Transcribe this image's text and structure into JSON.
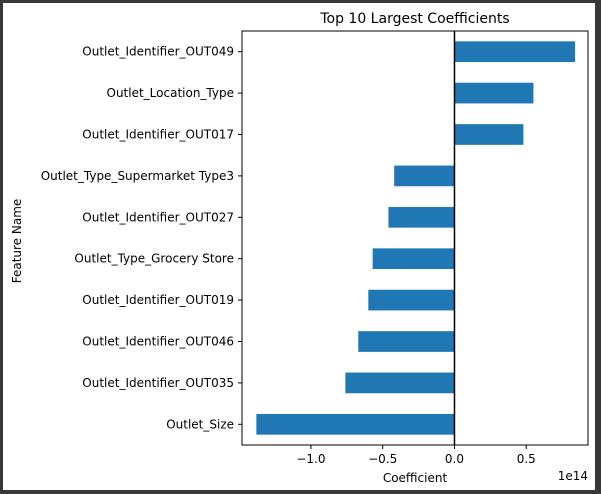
{
  "chart_data": {
    "type": "bar",
    "orientation": "horizontal",
    "title": "Top 10 Largest Coefficients",
    "xlabel": "Coefficient",
    "ylabel": "Feature Name",
    "x_offset_text": "1e14",
    "xlim": [
      -1.48,
      0.93
    ],
    "xticks": [
      -1.0,
      -0.5,
      0.0,
      0.5
    ],
    "xtick_labels": [
      "−1.0",
      "−0.5",
      "0.0",
      "0.5"
    ],
    "bar_color": "#1f77b4",
    "zero_line": true,
    "categories": [
      "Outlet_Identifier_OUT049",
      "Outlet_Location_Type",
      "Outlet_Identifier_OUT017",
      "Outlet_Type_Supermarket Type3",
      "Outlet_Identifier_OUT027",
      "Outlet_Type_Grocery Store",
      "Outlet_Identifier_OUT019",
      "Outlet_Identifier_OUT046",
      "Outlet_Identifier_OUT035",
      "Outlet_Size"
    ],
    "values": [
      0.84,
      0.55,
      0.48,
      -0.42,
      -0.46,
      -0.57,
      -0.6,
      -0.67,
      -0.76,
      -1.38
    ]
  }
}
